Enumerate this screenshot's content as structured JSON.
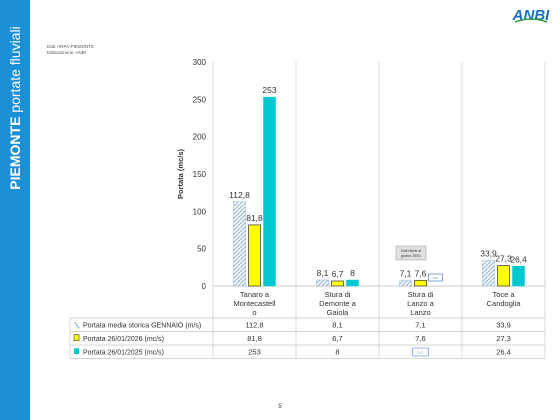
{
  "sidebar": {
    "title_bold": "PIEMONTE",
    "title_rest": "portate fluviali"
  },
  "source": {
    "line1": "Dati: ARPA-PIEMONTE",
    "line2": "Elaborazione: ANBI"
  },
  "page_number": "5",
  "logo_text": "ANBI",
  "colors": {
    "sidebar": "#1d8fd6",
    "hist": "#8eb4d8",
    "y2026": "#ffff00",
    "y2025": "#00c8d0",
    "note_border": "#4a86c5"
  },
  "chart_data": {
    "type": "bar",
    "categories": [
      "Tanaro a Montecastello",
      "Stura di Demonte a Gaiola",
      "Stura di Lanzo a Lanzo",
      "Toce a Candoglia"
    ],
    "category_lines": [
      [
        "Tanaro a",
        "Montecastell",
        "o"
      ],
      [
        "Stura di",
        "Demonte a",
        "Gaiola"
      ],
      [
        "Stura di",
        "Lanzo a",
        "Lanzo"
      ],
      [
        "Toce a",
        "Candoglia"
      ]
    ],
    "series": [
      {
        "name": "Portata media storica GENNAIO (m/s)",
        "values": [
          112.8,
          8.1,
          7.1,
          33.9
        ],
        "labels": [
          "112,8",
          "8,1",
          "7,1",
          "33,9"
        ]
      },
      {
        "name": "Portata 26/01/2026 (mc/s)",
        "values": [
          81.8,
          6.7,
          7.6,
          27.3
        ],
        "labels": [
          "81,8",
          "6,7",
          "7,6",
          "27,3"
        ]
      },
      {
        "name": "Portata 26/01/2025 (mc/s)",
        "values": [
          253,
          8,
          null,
          26.4
        ],
        "labels": [
          "253",
          "8",
          "n.d.",
          "26,4"
        ]
      }
    ],
    "ylabel": "Portata (mc/s)",
    "ylim": [
      0,
      300
    ],
    "yticks": [
      0,
      50,
      100,
      150,
      200,
      250,
      300
    ],
    "grid": "vertical category separators",
    "legend": "table below chart",
    "annotation": "Dati riferiti al giorno 25/01"
  }
}
